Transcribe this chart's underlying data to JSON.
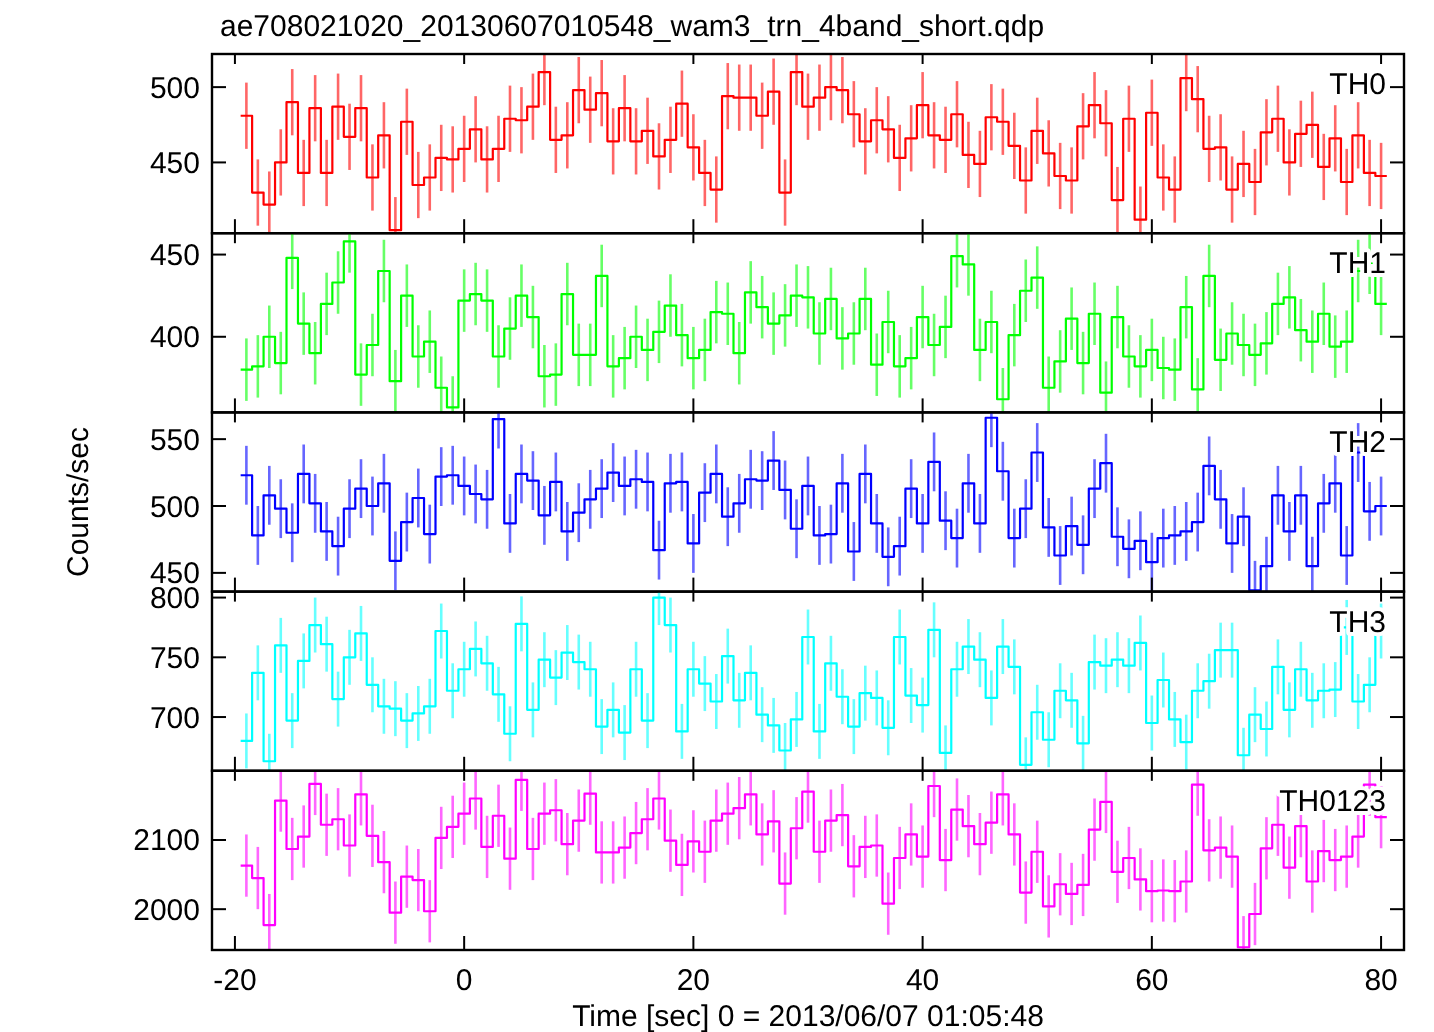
{
  "chart_data": [
    {
      "type": "step",
      "title": "ae708021020_20130607010548_wam3_trn_4band_short.qdp",
      "legend": "top right",
      "tick_labels": "y",
      "xlim": [
        -22,
        82
      ],
      "xticks": [
        -20,
        0,
        20,
        40,
        60,
        80
      ],
      "ylim": [
        403,
        522
      ],
      "yticks": [
        450,
        500
      ],
      "x": [
        -19,
        -18,
        -17,
        -16,
        -15,
        -14,
        -13,
        -12,
        -11,
        -10,
        -9,
        -8,
        -7,
        -6,
        -5,
        -4,
        -3,
        -2,
        -1,
        0,
        1,
        2,
        3,
        4,
        5,
        6,
        7,
        8,
        9,
        10,
        11,
        12,
        13,
        14,
        15,
        16,
        17,
        18,
        19,
        20,
        21,
        22,
        23,
        24,
        25,
        26,
        27,
        28,
        29,
        30,
        31,
        32,
        33,
        34,
        35,
        36,
        37,
        38,
        39,
        40,
        41,
        42,
        43,
        44,
        45,
        46,
        47,
        48,
        49,
        50,
        51,
        52,
        53,
        54,
        55,
        56,
        57,
        58,
        59,
        60,
        61,
        62,
        63,
        64,
        65,
        66,
        67,
        68,
        69,
        70,
        71,
        72,
        73,
        74,
        75,
        76,
        77,
        78,
        79,
        80
      ],
      "series": [
        {
          "name": "TH0",
          "color": "#ff0000",
          "values": [
            481,
            430,
            422,
            450,
            490,
            443,
            486,
            443,
            487,
            467,
            486,
            440,
            468,
            405,
            477,
            435,
            440,
            453,
            452,
            459,
            472,
            452,
            459,
            479,
            478,
            487,
            510,
            465,
            468,
            498,
            485,
            496,
            464,
            486,
            464,
            471,
            454,
            465,
            489,
            460,
            443,
            432,
            494,
            493,
            493,
            481,
            497,
            430,
            510,
            487,
            493,
            500,
            498,
            482,
            464,
            478,
            472,
            453,
            466,
            488,
            468,
            465,
            482,
            455,
            449,
            480,
            477,
            461,
            438,
            471,
            456,
            441,
            438,
            474,
            488,
            476,
            425,
            479,
            412,
            483,
            440,
            432,
            506,
            492,
            459,
            460,
            432,
            449,
            437,
            470,
            479,
            450,
            469,
            475,
            447,
            466,
            437,
            468,
            443,
            441
          ],
          "errors": [
            22,
            22,
            [
              403,
              444
            ],
            22,
            22,
            22,
            22,
            22,
            22,
            22,
            22,
            22,
            22,
            [
              403,
              427
            ],
            22,
            22,
            22,
            22,
            22,
            22,
            22,
            22,
            22,
            22,
            22,
            22,
            [
              488,
              522
            ],
            22,
            22,
            22,
            22,
            22,
            22,
            22,
            22,
            22,
            22,
            22,
            22,
            22,
            22,
            22,
            22,
            22,
            22,
            22,
            22,
            22,
            [
              488,
              522
            ],
            22,
            22,
            22,
            22,
            22,
            22,
            22,
            22,
            22,
            22,
            22,
            22,
            22,
            22,
            22,
            22,
            22,
            22,
            22,
            22,
            22,
            22,
            22,
            22,
            22,
            22,
            22,
            22,
            22,
            [
              403,
              434
            ],
            22,
            22,
            22,
            [
              484,
              522
            ],
            22,
            22,
            22,
            22,
            22,
            22,
            22,
            22,
            22,
            22,
            22,
            22,
            22,
            22,
            22,
            22,
            22
          ]
        }
      ]
    },
    {
      "type": "step",
      "legend": "top right",
      "tick_labels": "y",
      "xlim": [
        -22,
        82
      ],
      "xticks": [
        -20,
        0,
        20,
        40,
        60,
        80
      ],
      "ylim": [
        354,
        463
      ],
      "yticks": [
        400,
        450
      ],
      "x": [
        -19,
        -18,
        -17,
        -16,
        -15,
        -14,
        -13,
        -12,
        -11,
        -10,
        -9,
        -8,
        -7,
        -6,
        -5,
        -4,
        -3,
        -2,
        -1,
        0,
        1,
        2,
        3,
        4,
        5,
        6,
        7,
        8,
        9,
        10,
        11,
        12,
        13,
        14,
        15,
        16,
        17,
        18,
        19,
        20,
        21,
        22,
        23,
        24,
        25,
        26,
        27,
        28,
        29,
        30,
        31,
        32,
        33,
        34,
        35,
        36,
        37,
        38,
        39,
        40,
        41,
        42,
        43,
        44,
        45,
        46,
        47,
        48,
        49,
        50,
        51,
        52,
        53,
        54,
        55,
        56,
        57,
        58,
        59,
        60,
        61,
        62,
        63,
        64,
        65,
        66,
        67,
        68,
        69,
        70,
        71,
        72,
        73,
        74,
        75,
        76,
        77,
        78,
        79,
        80
      ],
      "series": [
        {
          "name": "TH1",
          "color": "#00ff00",
          "values": [
            380,
            382,
            400,
            384,
            448,
            408,
            390,
            420,
            433,
            458,
            377,
            395,
            440,
            373,
            425,
            388,
            397,
            369,
            357,
            422,
            426,
            422,
            388,
            405,
            425,
            412,
            376,
            377,
            426,
            389,
            389,
            437,
            382,
            387,
            400,
            392,
            403,
            419,
            401,
            387,
            392,
            415,
            414,
            390,
            427,
            418,
            408,
            413,
            425,
            424,
            402,
            423,
            399,
            402,
            423,
            383,
            409,
            382,
            387,
            412,
            395,
            406,
            449,
            444,
            392,
            409,
            362,
            401,
            428,
            436,
            369,
            385,
            411,
            384,
            414,
            366,
            412,
            388,
            382,
            392,
            381,
            380,
            418,
            368,
            437,
            386,
            402,
            395,
            389,
            396,
            420,
            424,
            404,
            397,
            414,
            394,
            397,
            440,
            445,
            420
          ],
          "errors": [
            19,
            19,
            19,
            19,
            [
              429,
              463
            ],
            19,
            19,
            19,
            19,
            [
              439,
              463
            ],
            19,
            19,
            19,
            19,
            19,
            19,
            19,
            [
              354,
              388
            ],
            [
              354,
              376
            ],
            19,
            19,
            19,
            19,
            19,
            19,
            19,
            19,
            19,
            19,
            19,
            19,
            19,
            19,
            19,
            19,
            19,
            19,
            19,
            19,
            19,
            19,
            19,
            19,
            19,
            19,
            19,
            19,
            19,
            19,
            19,
            19,
            19,
            19,
            19,
            19,
            19,
            19,
            19,
            19,
            19,
            19,
            19,
            [
              430,
              463
            ],
            19,
            19,
            19,
            [
              354,
              381
            ],
            19,
            19,
            19,
            [
              354,
              388
            ],
            19,
            19,
            19,
            19,
            [
              354,
              385
            ],
            19,
            19,
            19,
            19,
            19,
            19,
            19,
            [
              354,
              387
            ],
            19,
            19,
            19,
            19,
            19,
            19,
            19,
            19,
            19,
            19,
            19,
            19,
            19,
            19,
            [
              426,
              463
            ],
            19
          ]
        }
      ]
    },
    {
      "type": "step",
      "ylabel": "Counts/sec",
      "legend": "top right",
      "tick_labels": "y",
      "xlim": [
        -22,
        82
      ],
      "xticks": [
        -20,
        0,
        20,
        40,
        60,
        80
      ],
      "ylim": [
        436,
        570
      ],
      "yticks": [
        450,
        500,
        550
      ],
      "x": [
        -19,
        -18,
        -17,
        -16,
        -15,
        -14,
        -13,
        -12,
        -11,
        -10,
        -9,
        -8,
        -7,
        -6,
        -5,
        -4,
        -3,
        -2,
        -1,
        0,
        1,
        2,
        3,
        4,
        5,
        6,
        7,
        8,
        9,
        10,
        11,
        12,
        13,
        14,
        15,
        16,
        17,
        18,
        19,
        20,
        21,
        22,
        23,
        24,
        25,
        26,
        27,
        28,
        29,
        30,
        31,
        32,
        33,
        34,
        35,
        36,
        37,
        38,
        39,
        40,
        41,
        42,
        43,
        44,
        45,
        46,
        47,
        48,
        49,
        50,
        51,
        52,
        53,
        54,
        55,
        56,
        57,
        58,
        59,
        60,
        61,
        62,
        63,
        64,
        65,
        66,
        67,
        68,
        69,
        70,
        71,
        72,
        73,
        74,
        75,
        76,
        77,
        78,
        79,
        80
      ],
      "series": [
        {
          "name": "TH2",
          "color": "#0000ff",
          "values": [
            523,
            478,
            508,
            498,
            480,
            524,
            502,
            481,
            470,
            498,
            513,
            500,
            517,
            459,
            488,
            506,
            479,
            522,
            523,
            515,
            509,
            505,
            565,
            487,
            524,
            519,
            493,
            518,
            481,
            495,
            505,
            513,
            525,
            515,
            520,
            518,
            467,
            517,
            518,
            472,
            510,
            524,
            492,
            502,
            520,
            519,
            534,
            512,
            483,
            515,
            478,
            479,
            517,
            466,
            524,
            487,
            462,
            470,
            513,
            487,
            533,
            489,
            476,
            517,
            487,
            566,
            526,
            476,
            498,
            540,
            484,
            463,
            485,
            471,
            513,
            532,
            477,
            468,
            474,
            458,
            476,
            478,
            481,
            488,
            530,
            505,
            472,
            492,
            437,
            455,
            508,
            481,
            508,
            455,
            502,
            517,
            463,
            540,
            496,
            500
          ],
          "errors": [
            22,
            22,
            22,
            22,
            22,
            22,
            22,
            22,
            22,
            22,
            22,
            22,
            22,
            22,
            22,
            22,
            22,
            22,
            22,
            22,
            22,
            22,
            [
              543,
              570
            ],
            22,
            22,
            22,
            22,
            22,
            22,
            22,
            22,
            22,
            22,
            22,
            22,
            22,
            22,
            22,
            22,
            22,
            22,
            22,
            22,
            22,
            22,
            22,
            22,
            22,
            22,
            22,
            22,
            22,
            22,
            22,
            22,
            22,
            22,
            22,
            22,
            22,
            22,
            22,
            22,
            22,
            22,
            [
              544,
              570
            ],
            22,
            22,
            22,
            22,
            22,
            22,
            22,
            22,
            22,
            22,
            22,
            22,
            22,
            22,
            22,
            22,
            22,
            22,
            22,
            22,
            22,
            22,
            [
              436,
              459
            ],
            [
              436,
              477
            ],
            22,
            22,
            22,
            [
              436,
              477
            ],
            22,
            22,
            22,
            22,
            22,
            22
          ]
        }
      ]
    },
    {
      "type": "step",
      "legend": "top right",
      "tick_labels": "y",
      "xlim": [
        -22,
        82
      ],
      "xticks": [
        -20,
        0,
        20,
        40,
        60,
        80
      ],
      "ylim": [
        655,
        805
      ],
      "yticks": [
        700,
        750,
        800
      ],
      "x": [
        -19,
        -18,
        -17,
        -16,
        -15,
        -14,
        -13,
        -12,
        -11,
        -10,
        -9,
        -8,
        -7,
        -6,
        -5,
        -4,
        -3,
        -2,
        -1,
        0,
        1,
        2,
        3,
        4,
        5,
        6,
        7,
        8,
        9,
        10,
        11,
        12,
        13,
        14,
        15,
        16,
        17,
        18,
        19,
        20,
        21,
        22,
        23,
        24,
        25,
        26,
        27,
        28,
        29,
        30,
        31,
        32,
        33,
        34,
        35,
        36,
        37,
        38,
        39,
        40,
        41,
        42,
        43,
        44,
        45,
        46,
        47,
        48,
        49,
        50,
        51,
        52,
        53,
        54,
        55,
        56,
        57,
        58,
        59,
        60,
        61,
        62,
        63,
        64,
        65,
        66,
        67,
        68,
        69,
        70,
        71,
        72,
        73,
        74,
        75,
        76,
        77,
        78,
        79,
        80
      ],
      "series": [
        {
          "name": "TH3",
          "color": "#00ffff",
          "values": [
            680,
            737,
            663,
            760,
            697,
            747,
            777,
            761,
            715,
            750,
            770,
            727,
            709,
            707,
            697,
            703,
            709,
            772,
            722,
            740,
            757,
            745,
            719,
            686,
            778,
            706,
            748,
            733,
            754,
            746,
            740,
            692,
            706,
            687,
            740,
            697,
            800,
            777,
            688,
            740,
            728,
            713,
            751,
            714,
            737,
            702,
            693,
            672,
            698,
            767,
            688,
            745,
            717,
            692,
            720,
            716,
            691,
            767,
            718,
            710,
            773,
            670,
            740,
            759,
            748,
            716,
            759,
            742,
            660,
            704,
            681,
            722,
            714,
            678,
            746,
            743,
            748,
            743,
            762,
            695,
            731,
            698,
            679,
            722,
            730,
            756,
            756,
            668,
            702,
            690,
            742,
            706,
            740,
            714,
            722,
            723,
            775,
            713,
            727,
            772
          ],
          "errors": [
            23,
            23,
            [
              655,
              686
            ],
            23,
            23,
            23,
            23,
            23,
            23,
            23,
            23,
            23,
            23,
            23,
            23,
            23,
            23,
            23,
            23,
            23,
            23,
            23,
            23,
            23,
            23,
            23,
            23,
            23,
            23,
            23,
            23,
            23,
            23,
            23,
            23,
            23,
            [
              777,
              805
            ],
            23,
            23,
            23,
            23,
            23,
            23,
            23,
            23,
            23,
            23,
            [
              655,
              695
            ],
            23,
            23,
            23,
            23,
            23,
            23,
            23,
            23,
            23,
            23,
            23,
            23,
            23,
            [
              655,
              693
            ],
            23,
            23,
            23,
            23,
            23,
            23,
            [
              655,
              683
            ],
            23,
            23,
            23,
            23,
            23,
            23,
            23,
            23,
            23,
            23,
            23,
            23,
            23,
            23,
            23,
            23,
            23,
            23,
            [
              655,
              691
            ],
            23,
            23,
            23,
            23,
            23,
            23,
            23,
            23,
            23,
            23,
            23,
            23
          ]
        }
      ]
    },
    {
      "type": "step",
      "xlabel": "Time [sec] 0 = 2013/06/07 01:05:48",
      "legend": "top right",
      "xlim": [
        -22,
        82
      ],
      "xticks": [
        -20,
        0,
        20,
        40,
        60,
        80
      ],
      "ylim": [
        1941,
        2200
      ],
      "yticks": [
        2000,
        2100
      ],
      "x": [
        -19,
        -18,
        -17,
        -16,
        -15,
        -14,
        -13,
        -12,
        -11,
        -10,
        -9,
        -8,
        -7,
        -6,
        -5,
        -4,
        -3,
        -2,
        -1,
        0,
        1,
        2,
        3,
        4,
        5,
        6,
        7,
        8,
        9,
        10,
        11,
        12,
        13,
        14,
        15,
        16,
        17,
        18,
        19,
        20,
        21,
        22,
        23,
        24,
        25,
        26,
        27,
        28,
        29,
        30,
        31,
        32,
        33,
        34,
        35,
        36,
        37,
        38,
        39,
        40,
        41,
        42,
        43,
        44,
        45,
        46,
        47,
        48,
        49,
        50,
        51,
        52,
        53,
        54,
        55,
        56,
        57,
        58,
        59,
        60,
        61,
        62,
        63,
        64,
        65,
        66,
        67,
        68,
        69,
        70,
        71,
        72,
        73,
        74,
        75,
        76,
        77,
        78,
        79,
        80
      ],
      "series": [
        {
          "name": "TH0123",
          "color": "#ff00ff",
          "values": [
            2063,
            2045,
            1977,
            2157,
            2087,
            2105,
            2181,
            2122,
            2130,
            2092,
            2166,
            2106,
            2068,
            1995,
            2047,
            2042,
            1997,
            2103,
            2119,
            2138,
            2160,
            2090,
            2135,
            2073,
            2187,
            2087,
            2138,
            2143,
            2094,
            2128,
            2167,
            2082,
            2082,
            2089,
            2110,
            2130,
            2160,
            2099,
            2064,
            2098,
            2083,
            2128,
            2138,
            2146,
            2166,
            2108,
            2127,
            2037,
            2117,
            2170,
            2083,
            2128,
            2136,
            2062,
            2090,
            2092,
            2008,
            2074,
            2108,
            2076,
            2178,
            2071,
            2144,
            2120,
            2094,
            2125,
            2166,
            2108,
            2024,
            2083,
            2004,
            2036,
            2022,
            2035,
            2115,
            2155,
            2054,
            2074,
            2043,
            2026,
            2027,
            2026,
            2040,
            2180,
            2085,
            2089,
            2076,
            1945,
            1993,
            2088,
            2122,
            2060,
            2120,
            2040,
            2084,
            2071,
            2076,
            2105,
            2180,
            2133
          ],
          "errors": [
            45,
            45,
            [
              1941,
              2022
            ],
            [
              2112,
              2200
            ],
            45,
            45,
            [
              2136,
              2200
            ],
            45,
            45,
            45,
            [
              2121,
              2200
            ],
            45,
            45,
            45,
            45,
            45,
            45,
            45,
            45,
            45,
            [
              2115,
              2200
            ],
            45,
            45,
            45,
            [
              2142,
              2200
            ],
            45,
            45,
            45,
            45,
            45,
            [
              2122,
              2200
            ],
            45,
            45,
            45,
            45,
            45,
            [
              2115,
              2200
            ],
            45,
            45,
            45,
            45,
            45,
            45,
            45,
            [
              2121,
              2200
            ],
            45,
            45,
            45,
            45,
            [
              2125,
              2200
            ],
            45,
            45,
            45,
            45,
            45,
            45,
            45,
            45,
            45,
            45,
            [
              2133,
              2200
            ],
            45,
            45,
            45,
            45,
            45,
            [
              2121,
              2200
            ],
            45,
            45,
            45,
            45,
            45,
            45,
            45,
            45,
            45,
            45,
            45,
            45,
            45,
            45,
            45,
            45,
            [
              2135,
              2200
            ],
            45,
            45,
            45,
            [
              1941,
              1990
            ],
            45,
            45,
            45,
            45,
            45,
            45,
            45,
            45,
            45,
            45,
            [
              2135,
              2200
            ],
            45
          ]
        }
      ]
    }
  ]
}
